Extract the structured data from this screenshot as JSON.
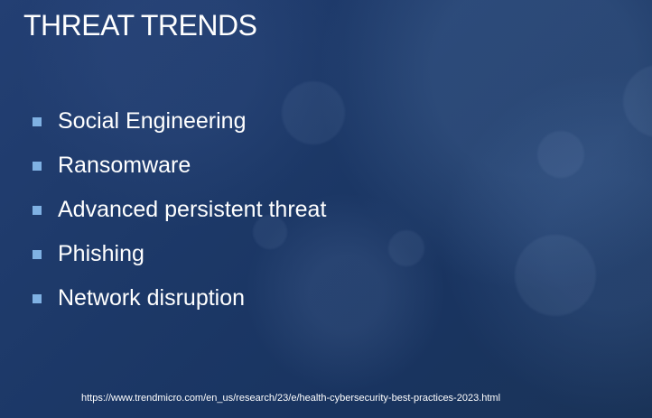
{
  "slide": {
    "title": "THREAT TRENDS",
    "bullets": [
      "Social Engineering",
      "Ransomware",
      "Advanced persistent threat",
      "Phishing",
      "Network disruption"
    ],
    "source_url": "https://www.trendmicro.com/en_us/research/23/e/health-cybersecurity-best-practices-2023.html"
  },
  "colors": {
    "background": "#1e3a6d",
    "text": "#ffffff",
    "bullet_marker": "#7fb1e3"
  },
  "icons": {
    "bullet_marker": "square-bullet-icon"
  }
}
